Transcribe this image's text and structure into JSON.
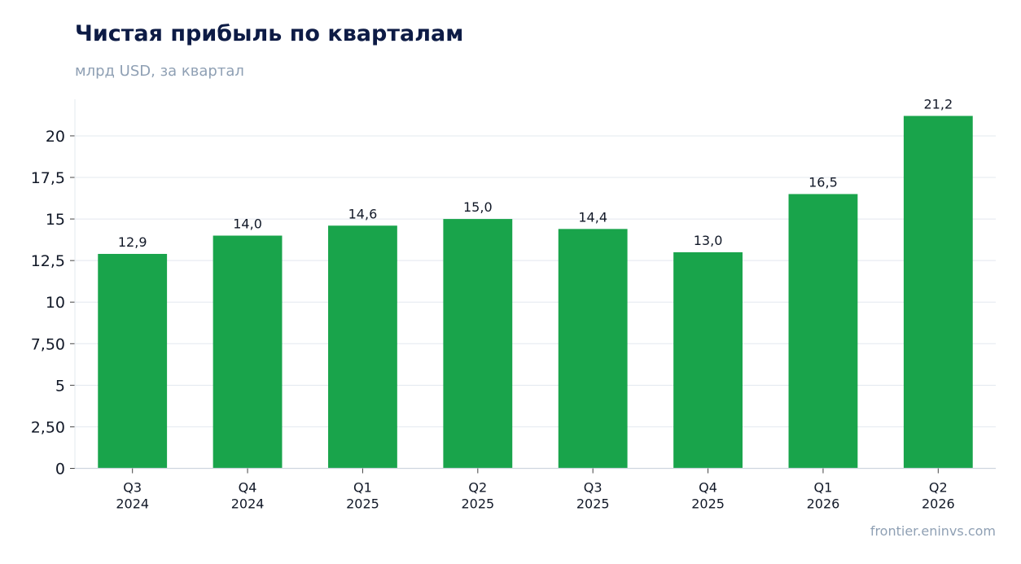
{
  "header": {
    "title": "Чистая прибыль по кварталам",
    "subtitle": "млрд USD, за квартал"
  },
  "footer": {
    "source": "frontier.eninvs.com"
  },
  "colors": {
    "bar": "#19a44b",
    "grid": "#e3e8ef",
    "axis": "#cfd6df",
    "text": "#111827"
  },
  "chart_data": {
    "type": "bar",
    "title": "Чистая прибыль по кварталам",
    "subtitle": "млрд USD, за квартал",
    "categories": [
      [
        "Q3",
        "2024"
      ],
      [
        "Q4",
        "2024"
      ],
      [
        "Q1",
        "2025"
      ],
      [
        "Q2",
        "2025"
      ],
      [
        "Q3",
        "2025"
      ],
      [
        "Q4",
        "2025"
      ],
      [
        "Q1",
        "2026"
      ],
      [
        "Q2",
        "2026"
      ]
    ],
    "values": [
      12.9,
      14.0,
      14.6,
      15.0,
      14.4,
      13.0,
      16.5,
      21.2
    ],
    "value_labels": [
      "12,9",
      "14,0",
      "14,6",
      "15,0",
      "14,4",
      "13,0",
      "16,5",
      "21,2"
    ],
    "yticks": [
      0,
      2.5,
      5,
      7.5,
      10,
      12.5,
      15,
      17.5,
      20
    ],
    "ytick_labels": [
      "0",
      "2,50",
      "5",
      "7,50",
      "10",
      "12,5",
      "15",
      "17,5",
      "20"
    ],
    "ylim": [
      0,
      22.2
    ],
    "grid": true,
    "legend": false
  }
}
